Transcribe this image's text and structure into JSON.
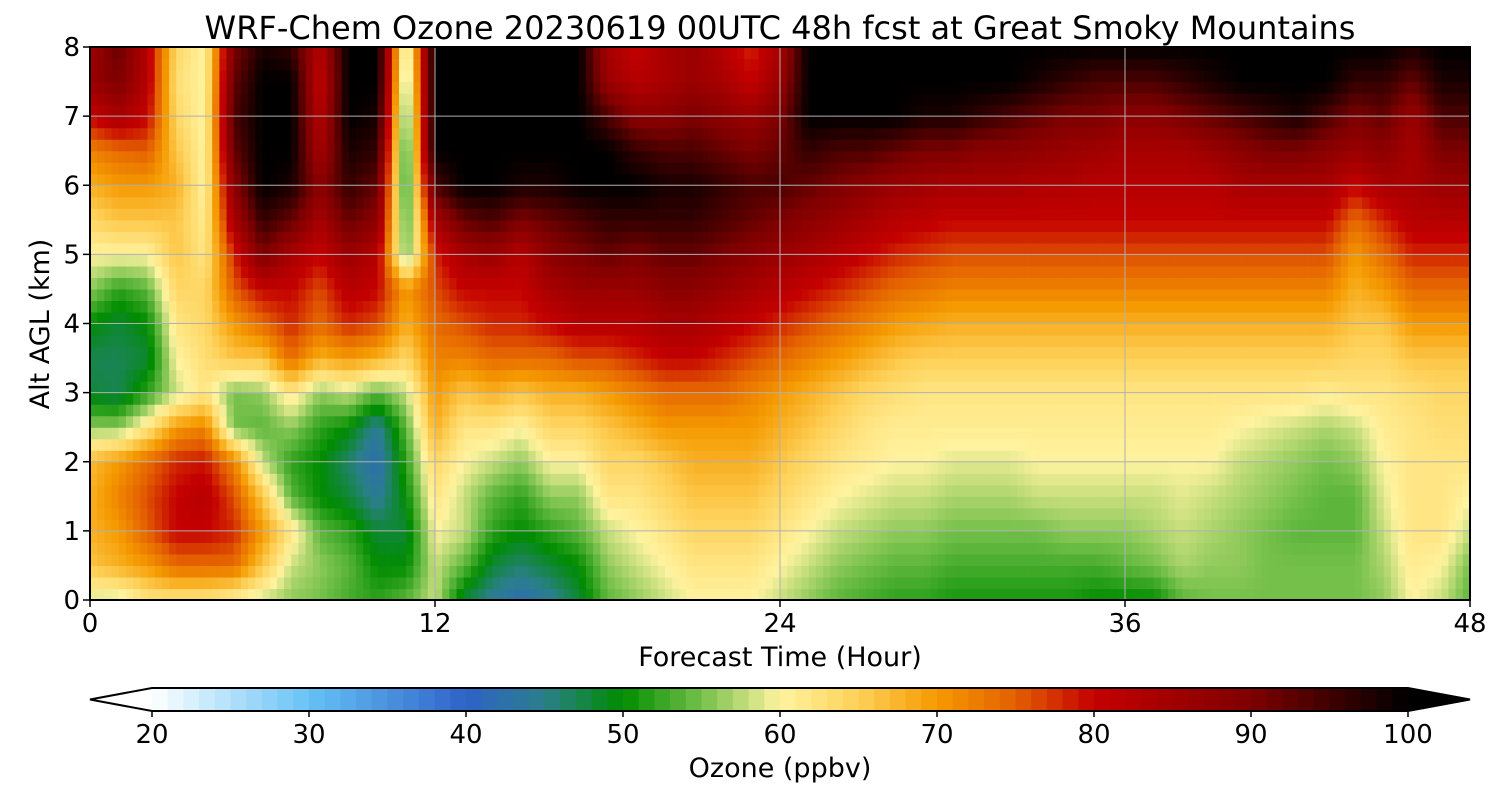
{
  "chart_data": {
    "type": "heatmap",
    "title": "WRF-Chem Ozone  20230619 00UTC 48h fcst at Great Smoky Mountains",
    "xlabel": "Forecast Time (Hour)",
    "ylabel": "Alt AGL (km)",
    "xlim": [
      0,
      48
    ],
    "ylim": [
      0,
      8
    ],
    "xticks": [
      0,
      12,
      24,
      36,
      48
    ],
    "yticks": [
      0,
      1,
      2,
      3,
      4,
      5,
      6,
      7,
      8
    ],
    "grid": true,
    "colorbar": {
      "label": "Ozone  (ppbv)",
      "min": 20,
      "max": 100,
      "ticks": [
        20,
        30,
        40,
        50,
        60,
        70,
        80,
        90,
        100
      ],
      "extend": "both",
      "orientation": "horizontal",
      "stops": [
        {
          "v": 20,
          "c": "#ffffff"
        },
        {
          "v": 30,
          "c": "#66c2f5"
        },
        {
          "v": 40,
          "c": "#2f62c8"
        },
        {
          "v": 45,
          "c": "#2a7f8a"
        },
        {
          "v": 50,
          "c": "#008c00"
        },
        {
          "v": 55,
          "c": "#74c04a"
        },
        {
          "v": 60,
          "c": "#fff3a0"
        },
        {
          "v": 65,
          "c": "#fed057"
        },
        {
          "v": 70,
          "c": "#f59a00"
        },
        {
          "v": 75,
          "c": "#e35f00"
        },
        {
          "v": 80,
          "c": "#c40000"
        },
        {
          "v": 90,
          "c": "#7e0000"
        },
        {
          "v": 100,
          "c": "#000000"
        }
      ]
    },
    "heights": [
      0,
      0.5,
      1,
      1.5,
      2,
      2.5,
      3,
      3.5,
      4,
      4.5,
      5,
      5.5,
      6,
      6.5,
      7,
      7.5,
      8
    ],
    "columns": [
      {
        "h": 0,
        "v": [
          58,
          66,
          68,
          68,
          67,
          56,
          48,
          47,
          50,
          56,
          60,
          64,
          68,
          72,
          80,
          86,
          85
        ]
      },
      {
        "h": 1,
        "v": [
          58,
          68,
          70,
          72,
          70,
          56,
          47,
          47,
          48,
          52,
          60,
          66,
          70,
          74,
          84,
          90,
          92
        ]
      },
      {
        "h": 2,
        "v": [
          62,
          70,
          75,
          76,
          74,
          62,
          52,
          48,
          50,
          54,
          60,
          66,
          70,
          75,
          80,
          82,
          82
        ]
      },
      {
        "h": 3,
        "v": [
          62,
          74,
          80,
          80,
          78,
          70,
          58,
          60,
          62,
          64,
          66,
          66,
          68,
          66,
          64,
          63,
          64
        ]
      },
      {
        "h": 4,
        "v": [
          62,
          74,
          80,
          82,
          79,
          72,
          62,
          63,
          64,
          64,
          62,
          61,
          60,
          60,
          60,
          60,
          60
        ]
      },
      {
        "h": 5,
        "v": [
          60,
          74,
          78,
          76,
          72,
          55,
          55,
          66,
          70,
          75,
          78,
          84,
          88,
          92,
          94,
          92,
          90
        ]
      },
      {
        "h": 6,
        "v": [
          58,
          66,
          70,
          66,
          58,
          54,
          56,
          66,
          74,
          80,
          90,
          96,
          100,
          100,
          100,
          100,
          98
        ]
      },
      {
        "h": 7,
        "v": [
          56,
          58,
          62,
          54,
          52,
          56,
          62,
          74,
          78,
          80,
          84,
          92,
          98,
          100,
          100,
          100,
          96
        ]
      },
      {
        "h": 8,
        "v": [
          55,
          56,
          54,
          50,
          50,
          52,
          56,
          68,
          74,
          76,
          80,
          84,
          88,
          84,
          82,
          80,
          82
        ]
      },
      {
        "h": 9,
        "v": [
          53,
          54,
          52,
          48,
          46,
          50,
          58,
          70,
          78,
          82,
          86,
          92,
          96,
          98,
          100,
          100,
          100
        ]
      },
      {
        "h": 10,
        "v": [
          52,
          50,
          48,
          44,
          42,
          44,
          54,
          68,
          76,
          80,
          82,
          88,
          92,
          96,
          98,
          100,
          100
        ]
      },
      {
        "h": 11,
        "v": [
          54,
          50,
          48,
          50,
          52,
          54,
          58,
          64,
          68,
          70,
          54,
          52,
          50,
          50,
          52,
          54,
          56
        ]
      },
      {
        "h": 12,
        "v": [
          58,
          58,
          60,
          62,
          64,
          68,
          70,
          72,
          74,
          76,
          78,
          84,
          94,
          100,
          100,
          100,
          100
        ]
      },
      {
        "h": 13,
        "v": [
          48,
          54,
          58,
          58,
          60,
          62,
          66,
          72,
          76,
          80,
          84,
          92,
          100,
          100,
          100,
          100,
          100
        ]
      },
      {
        "h": 14,
        "v": [
          44,
          48,
          52,
          54,
          58,
          62,
          68,
          74,
          78,
          80,
          86,
          94,
          100,
          100,
          100,
          100,
          100
        ]
      },
      {
        "h": 15,
        "v": [
          42,
          46,
          50,
          52,
          56,
          60,
          66,
          74,
          78,
          80,
          82,
          90,
          98,
          100,
          100,
          100,
          100
        ]
      },
      {
        "h": 16,
        "v": [
          44,
          48,
          52,
          56,
          60,
          64,
          68,
          74,
          80,
          84,
          88,
          92,
          98,
          100,
          100,
          100,
          100
        ]
      },
      {
        "h": 17,
        "v": [
          48,
          50,
          54,
          56,
          60,
          64,
          68,
          76,
          82,
          86,
          90,
          94,
          100,
          100,
          100,
          100,
          100
        ]
      },
      {
        "h": 18,
        "v": [
          54,
          56,
          58,
          62,
          64,
          66,
          70,
          76,
          82,
          86,
          92,
          96,
          100,
          100,
          94,
          86,
          84
        ]
      },
      {
        "h": 19,
        "v": [
          56,
          58,
          60,
          62,
          64,
          68,
          72,
          78,
          82,
          86,
          90,
          96,
          100,
          96,
          88,
          82,
          80
        ]
      },
      {
        "h": 20,
        "v": [
          58,
          60,
          62,
          64,
          66,
          70,
          74,
          80,
          84,
          88,
          92,
          96,
          98,
          94,
          88,
          84,
          84
        ]
      },
      {
        "h": 21,
        "v": [
          60,
          62,
          64,
          66,
          68,
          70,
          74,
          80,
          84,
          88,
          92,
          96,
          98,
          94,
          90,
          86,
          86
        ]
      },
      {
        "h": 22,
        "v": [
          60,
          62,
          64,
          66,
          68,
          70,
          74,
          78,
          82,
          86,
          90,
          94,
          96,
          92,
          88,
          84,
          82
        ]
      },
      {
        "h": 23,
        "v": [
          60,
          62,
          64,
          66,
          68,
          70,
          72,
          76,
          80,
          84,
          88,
          92,
          94,
          90,
          86,
          80,
          78
        ]
      },
      {
        "h": 24,
        "v": [
          58,
          60,
          62,
          64,
          66,
          68,
          70,
          74,
          78,
          82,
          86,
          90,
          94,
          92,
          90,
          86,
          84
        ]
      },
      {
        "h": 25,
        "v": [
          56,
          58,
          60,
          62,
          64,
          66,
          68,
          72,
          76,
          80,
          84,
          88,
          92,
          96,
          100,
          100,
          100
        ]
      },
      {
        "h": 26,
        "v": [
          54,
          56,
          58,
          60,
          62,
          64,
          66,
          70,
          74,
          78,
          82,
          86,
          90,
          94,
          100,
          100,
          100
        ]
      },
      {
        "h": 27,
        "v": [
          53,
          55,
          57,
          59,
          61,
          62,
          64,
          68,
          72,
          76,
          80,
          84,
          88,
          94,
          100,
          100,
          100
        ]
      },
      {
        "h": 28,
        "v": [
          52,
          54,
          56,
          58,
          60,
          61,
          63,
          66,
          70,
          74,
          78,
          82,
          86,
          92,
          100,
          100,
          100
        ]
      },
      {
        "h": 29,
        "v": [
          52,
          54,
          56,
          58,
          60,
          61,
          62,
          65,
          69,
          73,
          77,
          81,
          85,
          90,
          98,
          100,
          100
        ]
      },
      {
        "h": 30,
        "v": [
          51,
          53,
          55,
          57,
          59,
          61,
          62,
          65,
          68,
          72,
          76,
          80,
          84,
          90,
          98,
          100,
          100
        ]
      },
      {
        "h": 31,
        "v": [
          51,
          53,
          55,
          57,
          59,
          61,
          62,
          65,
          68,
          72,
          76,
          80,
          84,
          88,
          96,
          100,
          100
        ]
      },
      {
        "h": 32,
        "v": [
          51,
          53,
          55,
          57,
          59,
          61,
          62,
          65,
          68,
          72,
          76,
          80,
          84,
          88,
          94,
          100,
          100
        ]
      },
      {
        "h": 33,
        "v": [
          51,
          53,
          55,
          58,
          60,
          61,
          62,
          65,
          68,
          72,
          76,
          80,
          83,
          87,
          92,
          98,
          100
        ]
      },
      {
        "h": 34,
        "v": [
          51,
          53,
          56,
          58,
          60,
          61,
          62,
          65,
          68,
          72,
          76,
          80,
          83,
          86,
          90,
          96,
          100
        ]
      },
      {
        "h": 35,
        "v": [
          50,
          53,
          56,
          58,
          60,
          61,
          62,
          65,
          68,
          72,
          76,
          80,
          82,
          85,
          90,
          94,
          100
        ]
      },
      {
        "h": 36,
        "v": [
          50,
          54,
          56,
          58,
          60,
          61,
          62,
          65,
          68,
          72,
          76,
          80,
          82,
          84,
          88,
          94,
          100
        ]
      },
      {
        "h": 37,
        "v": [
          50,
          55,
          57,
          58,
          60,
          61,
          62,
          65,
          68,
          72,
          76,
          80,
          82,
          84,
          88,
          94,
          100
        ]
      },
      {
        "h": 38,
        "v": [
          54,
          57,
          58,
          59,
          60,
          61,
          62,
          65,
          68,
          72,
          76,
          80,
          82,
          84,
          90,
          96,
          100
        ]
      },
      {
        "h": 39,
        "v": [
          55,
          56,
          57,
          58,
          60,
          61,
          62,
          65,
          68,
          72,
          76,
          80,
          82,
          86,
          92,
          98,
          100
        ]
      },
      {
        "h": 40,
        "v": [
          55,
          56,
          56,
          57,
          58,
          60,
          62,
          65,
          68,
          72,
          76,
          80,
          84,
          88,
          94,
          100,
          100
        ]
      },
      {
        "h": 41,
        "v": [
          55,
          55,
          55,
          56,
          57,
          59,
          62,
          65,
          68,
          72,
          76,
          80,
          84,
          90,
          96,
          100,
          100
        ]
      },
      {
        "h": 42,
        "v": [
          55,
          55,
          54,
          55,
          56,
          58,
          62,
          65,
          68,
          72,
          76,
          80,
          84,
          90,
          98,
          100,
          100
        ]
      },
      {
        "h": 43,
        "v": [
          55,
          55,
          54,
          54,
          55,
          57,
          61,
          65,
          68,
          72,
          76,
          80,
          84,
          88,
          94,
          100,
          100
        ]
      },
      {
        "h": 44,
        "v": [
          55,
          55,
          54,
          54,
          56,
          58,
          62,
          64,
          66,
          68,
          70,
          74,
          80,
          86,
          90,
          96,
          100
        ]
      },
      {
        "h": 45,
        "v": [
          56,
          57,
          58,
          59,
          60,
          61,
          62,
          64,
          66,
          70,
          74,
          78,
          84,
          88,
          92,
          96,
          100
        ]
      },
      {
        "h": 46,
        "v": [
          60,
          61,
          62,
          62,
          62,
          62,
          63,
          66,
          70,
          74,
          78,
          82,
          84,
          84,
          86,
          92,
          98
        ]
      },
      {
        "h": 47,
        "v": [
          58,
          60,
          62,
          62,
          62,
          63,
          64,
          66,
          70,
          74,
          78,
          82,
          86,
          90,
          94,
          98,
          100
        ]
      },
      {
        "h": 48,
        "v": [
          54,
          55,
          58,
          60,
          62,
          63,
          64,
          66,
          70,
          74,
          78,
          82,
          86,
          90,
          94,
          98,
          100
        ]
      }
    ]
  }
}
